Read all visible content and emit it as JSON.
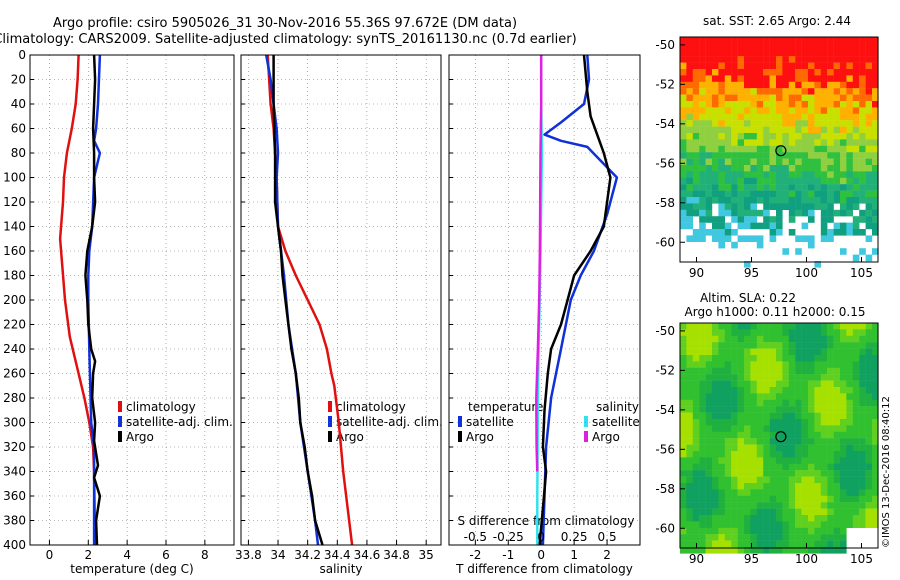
{
  "header": {
    "line1": "Argo profile: csiro 5905026_31 30-Nov-2016 55.36S 97.672E (DM data)",
    "line2": "Climatology: CARS2009. Satellite-adjusted climatology: synTS_20161130.nc (0.7d earlier)"
  },
  "credit": "©IMOS 13-Dec-2016 08:40:12",
  "colors": {
    "clim": "#e01010",
    "sat": "#1030d8",
    "argo": "#000000",
    "sal_sat": "#33e0f0",
    "sal_argo": "#e020e0"
  },
  "chart_data": [
    {
      "id": "temperature",
      "type": "line",
      "xlabel": "temperature (deg C)",
      "xlim": [
        -1,
        9.5
      ],
      "xticks": [
        0,
        2,
        4,
        6,
        8
      ],
      "xticklabels": [
        "0",
        "2",
        "4",
        "6",
        "8"
      ],
      "ylim": [
        0,
        400
      ],
      "yticks": [
        0,
        20,
        40,
        60,
        80,
        100,
        120,
        140,
        160,
        180,
        200,
        220,
        240,
        260,
        280,
        300,
        320,
        340,
        360,
        380,
        400
      ],
      "grid": true,
      "legend": [
        "climatology",
        "satellite-adj. clim.",
        "Argo"
      ],
      "series": [
        {
          "name": "climatology",
          "color_key": "clim",
          "points": [
            [
              1.5,
              0
            ],
            [
              1.45,
              20
            ],
            [
              1.35,
              40
            ],
            [
              1.15,
              60
            ],
            [
              0.9,
              80
            ],
            [
              0.75,
              100
            ],
            [
              0.7,
              120
            ],
            [
              0.55,
              150
            ],
            [
              0.6,
              160
            ],
            [
              0.8,
              200
            ],
            [
              1.05,
              230
            ],
            [
              1.5,
              260
            ],
            [
              1.8,
              280
            ],
            [
              2.05,
              300
            ],
            [
              2.25,
              320
            ],
            [
              2.3,
              340
            ],
            [
              2.35,
              400
            ]
          ]
        },
        {
          "name": "satellite-adj. clim.",
          "color_key": "sat",
          "points": [
            [
              2.6,
              0
            ],
            [
              2.5,
              40
            ],
            [
              2.4,
              60
            ],
            [
              2.3,
              70
            ],
            [
              2.6,
              80
            ],
            [
              2.3,
              100
            ],
            [
              2.2,
              140
            ],
            [
              2.05,
              160
            ],
            [
              2.0,
              180
            ],
            [
              2.0,
              200
            ],
            [
              2.05,
              240
            ],
            [
              2.15,
              300
            ],
            [
              2.3,
              320
            ],
            [
              2.3,
              360
            ],
            [
              2.3,
              400
            ]
          ]
        },
        {
          "name": "Argo",
          "color_key": "argo",
          "points": [
            [
              2.3,
              0
            ],
            [
              2.35,
              20
            ],
            [
              2.3,
              40
            ],
            [
              2.25,
              60
            ],
            [
              2.3,
              80
            ],
            [
              2.3,
              100
            ],
            [
              2.35,
              120
            ],
            [
              2.2,
              140
            ],
            [
              1.95,
              160
            ],
            [
              1.85,
              180
            ],
            [
              1.95,
              200
            ],
            [
              2.0,
              220
            ],
            [
              2.15,
              240
            ],
            [
              2.35,
              250
            ],
            [
              2.25,
              260
            ],
            [
              2.2,
              280
            ],
            [
              2.35,
              300
            ],
            [
              2.3,
              315
            ],
            [
              2.5,
              335
            ],
            [
              2.3,
              345
            ],
            [
              2.6,
              360
            ],
            [
              2.4,
              380
            ],
            [
              2.45,
              400
            ]
          ]
        }
      ]
    },
    {
      "id": "salinity",
      "type": "line",
      "xlabel": "salinity",
      "xlim": [
        33.75,
        35.1
      ],
      "xticks": [
        33.8,
        34,
        34.2,
        34.4,
        34.6,
        34.8,
        35
      ],
      "xticklabels": [
        "33.8",
        "34",
        "34.2",
        "34.4",
        "34.6",
        "34.8",
        "35"
      ],
      "ylim": [
        0,
        400
      ],
      "grid": true,
      "legend": [
        "climatology",
        "satellite-adj. clim.",
        "Argo"
      ],
      "series": [
        {
          "name": "climatology",
          "color_key": "clim",
          "points": [
            [
              33.93,
              0
            ],
            [
              33.95,
              40
            ],
            [
              33.97,
              60
            ],
            [
              33.99,
              100
            ],
            [
              34.0,
              140
            ],
            [
              34.05,
              160
            ],
            [
              34.12,
              180
            ],
            [
              34.2,
              200
            ],
            [
              34.28,
              220
            ],
            [
              34.33,
              240
            ],
            [
              34.36,
              260
            ],
            [
              34.38,
              270
            ],
            [
              34.41,
              300
            ],
            [
              34.44,
              340
            ],
            [
              34.5,
              400
            ]
          ]
        },
        {
          "name": "satellite-adj. clim.",
          "color_key": "sat",
          "points": [
            [
              33.92,
              0
            ],
            [
              33.95,
              20
            ],
            [
              33.97,
              40
            ],
            [
              33.99,
              60
            ],
            [
              34.0,
              80
            ],
            [
              33.99,
              100
            ],
            [
              34.0,
              140
            ],
            [
              34.04,
              180
            ],
            [
              34.07,
              220
            ],
            [
              34.12,
              260
            ],
            [
              34.15,
              300
            ],
            [
              34.2,
              340
            ],
            [
              34.25,
              380
            ],
            [
              34.27,
              400
            ]
          ]
        },
        {
          "name": "Argo",
          "color_key": "argo",
          "points": [
            [
              33.97,
              0
            ],
            [
              33.97,
              40
            ],
            [
              33.98,
              80
            ],
            [
              33.98,
              120
            ],
            [
              34.0,
              140
            ],
            [
              34.02,
              160
            ],
            [
              34.03,
              180
            ],
            [
              34.05,
              200
            ],
            [
              34.07,
              220
            ],
            [
              34.09,
              240
            ],
            [
              34.12,
              260
            ],
            [
              34.14,
              280
            ],
            [
              34.15,
              300
            ],
            [
              34.18,
              320
            ],
            [
              34.2,
              340
            ],
            [
              34.23,
              360
            ],
            [
              34.25,
              380
            ],
            [
              34.3,
              400
            ]
          ]
        }
      ]
    },
    {
      "id": "difference",
      "type": "line",
      "xlabel": "T difference from climatology",
      "xlabel2": "S difference from climatology",
      "xlim": [
        -2.8,
        3.0
      ],
      "xticks": [
        -2,
        -1,
        0,
        1,
        2
      ],
      "xticklabels": [
        "-2",
        "-1",
        "0",
        "1",
        "2"
      ],
      "xticks2": [
        -0.5,
        -0.25,
        0,
        0.25,
        0.5
      ],
      "xticklabels2": [
        "-0.5",
        "-0.25",
        "0",
        "0.25",
        "0.5"
      ],
      "ylim": [
        0,
        400
      ],
      "grid": true,
      "legend_temperature_title": "temperature",
      "legend_temperature": [
        "satellite",
        "Argo"
      ],
      "legend_salinity_title": "salinity",
      "legend_salinity": [
        "satellite",
        "Argo"
      ],
      "series": [
        {
          "name": "temperature satellite",
          "color_key": "sat",
          "points": [
            [
              1.4,
              0
            ],
            [
              1.45,
              20
            ],
            [
              1.3,
              40
            ],
            [
              0.6,
              55
            ],
            [
              0.1,
              65
            ],
            [
              0.6,
              70
            ],
            [
              1.4,
              75
            ],
            [
              2.3,
              100
            ],
            [
              2.0,
              130
            ],
            [
              1.6,
              160
            ],
            [
              1.2,
              180
            ],
            [
              0.9,
              200
            ],
            [
              0.6,
              240
            ],
            [
              0.3,
              280
            ],
            [
              0.15,
              320
            ],
            [
              0.1,
              360
            ],
            [
              0.05,
              400
            ]
          ]
        },
        {
          "name": "temperature Argo",
          "color_key": "argo",
          "points": [
            [
              1.3,
              0
            ],
            [
              1.4,
              30
            ],
            [
              1.5,
              50
            ],
            [
              1.9,
              80
            ],
            [
              2.1,
              100
            ],
            [
              2.0,
              120
            ],
            [
              1.9,
              140
            ],
            [
              1.5,
              160
            ],
            [
              1.0,
              180
            ],
            [
              0.8,
              200
            ],
            [
              0.6,
              220
            ],
            [
              0.3,
              240
            ],
            [
              0.2,
              260
            ],
            [
              0.1,
              290
            ],
            [
              0.05,
              320
            ],
            [
              0.15,
              340
            ],
            [
              0.05,
              370
            ],
            [
              -0.05,
              400
            ]
          ]
        },
        {
          "name": "salinity satellite",
          "color_key": "sal_sat",
          "points": [
            [
              0,
              0
            ],
            [
              0,
              40
            ],
            [
              0.02,
              80
            ],
            [
              0,
              120
            ],
            [
              -0.02,
              160
            ],
            [
              -0.05,
              200
            ],
            [
              -0.08,
              240
            ],
            [
              -0.1,
              280
            ],
            [
              -0.11,
              320
            ],
            [
              -0.12,
              360
            ],
            [
              -0.12,
              400
            ]
          ]
        },
        {
          "name": "salinity Argo",
          "color_key": "sal_argo",
          "points": [
            [
              0,
              0
            ],
            [
              0,
              40
            ],
            [
              -0.02,
              80
            ],
            [
              -0.03,
              120
            ],
            [
              -0.04,
              160
            ],
            [
              -0.06,
              200
            ],
            [
              -0.1,
              240
            ],
            [
              -0.15,
              280
            ],
            [
              -0.14,
              320
            ],
            [
              -0.12,
              340
            ]
          ]
        }
      ]
    },
    {
      "id": "sst_map",
      "type": "heatmap",
      "title": "sat. SST: 2.65 Argo: 2.44",
      "xticks": [
        90,
        95,
        100,
        105
      ],
      "xticklabels": [
        "90",
        "95",
        "100",
        "105"
      ],
      "yticks": [
        -50,
        -52,
        -54,
        -56,
        -58,
        -60
      ],
      "yticklabels": [
        "-50",
        "-52",
        "-54",
        "-56",
        "-58",
        "-60"
      ],
      "xlim": [
        88.5,
        106.5
      ],
      "ylim": [
        -61,
        -49.6
      ],
      "marker": {
        "lon": 97.67,
        "lat": -55.36
      }
    },
    {
      "id": "sla_map",
      "type": "heatmap",
      "title": "Altim. SLA: 0.22",
      "title2": "Argo h1000: 0.11 h2000: 0.15",
      "xticks": [
        90,
        95,
        100,
        105
      ],
      "xticklabels": [
        "90",
        "95",
        "100",
        "105"
      ],
      "yticks": [
        -50,
        -52,
        -54,
        -56,
        -58,
        -60
      ],
      "yticklabels": [
        "-50",
        "-52",
        "-54",
        "-56",
        "-58",
        "-60"
      ],
      "xlim": [
        88.5,
        106.5
      ],
      "ylim": [
        -61,
        -49.6
      ],
      "marker": {
        "lon": 97.67,
        "lat": -55.36
      }
    }
  ]
}
